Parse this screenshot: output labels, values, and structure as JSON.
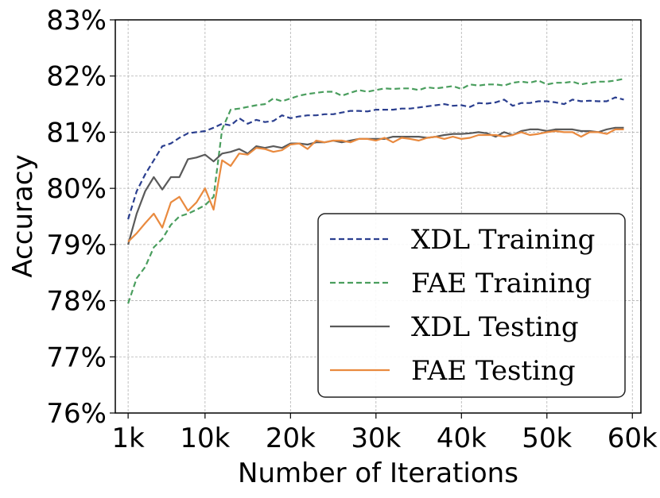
{
  "chart_data": {
    "type": "line",
    "title": "",
    "xlabel": "Number of Iterations",
    "ylabel": "Accuracy",
    "xlim": [
      -0.5,
      61
    ],
    "ylim": [
      76,
      83
    ],
    "xticks": [
      1,
      10,
      20,
      30,
      40,
      50,
      60
    ],
    "xtick_labels": [
      "1k",
      "10k",
      "20k",
      "30k",
      "40k",
      "50k",
      "60k"
    ],
    "yticks": [
      76,
      77,
      78,
      79,
      80,
      81,
      82,
      83
    ],
    "ytick_labels": [
      "76%",
      "77%",
      "78%",
      "79%",
      "80%",
      "81%",
      "82%",
      "83%"
    ],
    "grid": true,
    "legend_position": "lower-right",
    "series": [
      {
        "name": "XDL Training",
        "color": "#2b3f8f",
        "dash": "dashed",
        "x": [
          1,
          2,
          3,
          4,
          5,
          6,
          7,
          8,
          9,
          10,
          11,
          12,
          13,
          14,
          15,
          16,
          17,
          18,
          19,
          20,
          21,
          22,
          23,
          24,
          25,
          26,
          27,
          28,
          29,
          30,
          31,
          32,
          33,
          34,
          35,
          36,
          37,
          38,
          39,
          40,
          41,
          42,
          43,
          44,
          45,
          46,
          47,
          48,
          49,
          50,
          51,
          52,
          53,
          54,
          55,
          56,
          57,
          58,
          59
        ],
        "values": [
          79.45,
          79.95,
          80.25,
          80.5,
          80.75,
          80.8,
          80.9,
          80.98,
          81.0,
          81.02,
          81.08,
          81.15,
          81.12,
          81.25,
          81.15,
          81.22,
          81.18,
          81.2,
          81.3,
          81.25,
          81.28,
          81.3,
          81.3,
          81.32,
          81.32,
          81.35,
          81.38,
          81.38,
          81.37,
          81.4,
          81.4,
          81.4,
          81.42,
          81.42,
          81.44,
          81.46,
          81.48,
          81.5,
          81.47,
          81.48,
          81.45,
          81.52,
          81.51,
          81.53,
          81.58,
          81.47,
          81.52,
          81.52,
          81.55,
          81.55,
          81.53,
          81.5,
          81.58,
          81.55,
          81.56,
          81.55,
          81.55,
          81.62,
          81.58
        ]
      },
      {
        "name": "FAE Training",
        "color": "#4a9e5e",
        "dash": "dashed",
        "x": [
          1,
          2,
          3,
          4,
          5,
          6,
          7,
          8,
          9,
          10,
          11,
          12,
          13,
          14,
          15,
          16,
          17,
          18,
          19,
          20,
          21,
          22,
          23,
          24,
          25,
          26,
          27,
          28,
          29,
          30,
          31,
          32,
          33,
          34,
          35,
          36,
          37,
          38,
          39,
          40,
          41,
          42,
          43,
          44,
          45,
          46,
          47,
          48,
          49,
          50,
          51,
          52,
          53,
          54,
          55,
          56,
          57,
          58,
          59
        ],
        "values": [
          77.95,
          78.4,
          78.6,
          78.95,
          79.1,
          79.35,
          79.5,
          79.55,
          79.62,
          79.7,
          79.85,
          81.05,
          81.4,
          81.42,
          81.45,
          81.48,
          81.5,
          81.6,
          81.55,
          81.6,
          81.65,
          81.68,
          81.7,
          81.72,
          81.72,
          81.65,
          81.7,
          81.75,
          81.72,
          81.75,
          81.78,
          81.77,
          81.78,
          81.78,
          81.75,
          81.8,
          81.78,
          81.8,
          81.82,
          81.77,
          81.85,
          81.83,
          81.85,
          81.85,
          81.83,
          81.88,
          81.9,
          81.88,
          81.92,
          81.85,
          81.88,
          81.88,
          81.9,
          81.85,
          81.88,
          81.9,
          81.9,
          81.92,
          81.95
        ]
      },
      {
        "name": "XDL Testing",
        "color": "#5a5a5a",
        "dash": "solid",
        "x": [
          1,
          2,
          3,
          4,
          5,
          6,
          7,
          8,
          9,
          10,
          11,
          12,
          13,
          14,
          15,
          16,
          17,
          18,
          19,
          20,
          21,
          22,
          23,
          24,
          25,
          26,
          27,
          28,
          29,
          30,
          31,
          32,
          33,
          34,
          35,
          36,
          37,
          38,
          39,
          40,
          41,
          42,
          43,
          44,
          45,
          46,
          47,
          48,
          49,
          50,
          51,
          52,
          53,
          54,
          55,
          56,
          57,
          58,
          59
        ],
        "values": [
          79.0,
          79.55,
          79.95,
          80.2,
          79.98,
          80.2,
          80.2,
          80.52,
          80.55,
          80.6,
          80.48,
          80.62,
          80.65,
          80.7,
          80.62,
          80.75,
          80.72,
          80.75,
          80.72,
          80.8,
          80.8,
          80.78,
          80.82,
          80.82,
          80.85,
          80.82,
          80.85,
          80.88,
          80.88,
          80.88,
          80.88,
          80.92,
          80.92,
          80.92,
          80.92,
          80.9,
          80.92,
          80.95,
          80.97,
          80.97,
          80.98,
          81.0,
          80.98,
          80.92,
          81.0,
          80.95,
          81.02,
          81.05,
          81.05,
          81.02,
          81.05,
          81.05,
          81.05,
          81.02,
          81.02,
          81.0,
          81.05,
          81.08,
          81.08
        ]
      },
      {
        "name": "FAE Testing",
        "color": "#e98a3f",
        "dash": "solid",
        "x": [
          1,
          2,
          3,
          4,
          5,
          6,
          7,
          8,
          9,
          10,
          11,
          12,
          13,
          14,
          15,
          16,
          17,
          18,
          19,
          20,
          21,
          22,
          23,
          24,
          25,
          26,
          27,
          28,
          29,
          30,
          31,
          32,
          33,
          34,
          35,
          36,
          37,
          38,
          39,
          40,
          41,
          42,
          43,
          44,
          45,
          46,
          47,
          48,
          49,
          50,
          51,
          52,
          53,
          54,
          55,
          56,
          57,
          58,
          59
        ],
        "values": [
          79.05,
          79.2,
          79.38,
          79.55,
          79.3,
          79.75,
          79.85,
          79.6,
          79.75,
          80.0,
          79.62,
          80.5,
          80.4,
          80.62,
          80.6,
          80.72,
          80.7,
          80.65,
          80.68,
          80.78,
          80.8,
          80.7,
          80.85,
          80.82,
          80.85,
          80.85,
          80.82,
          80.88,
          80.88,
          80.85,
          80.9,
          80.82,
          80.9,
          80.88,
          80.85,
          80.9,
          80.92,
          80.88,
          80.92,
          80.88,
          80.9,
          80.95,
          80.95,
          80.95,
          80.92,
          80.95,
          81.0,
          80.95,
          80.97,
          81.0,
          81.02,
          81.0,
          81.0,
          80.92,
          81.0,
          81.0,
          80.97,
          81.05,
          81.05
        ]
      }
    ]
  }
}
